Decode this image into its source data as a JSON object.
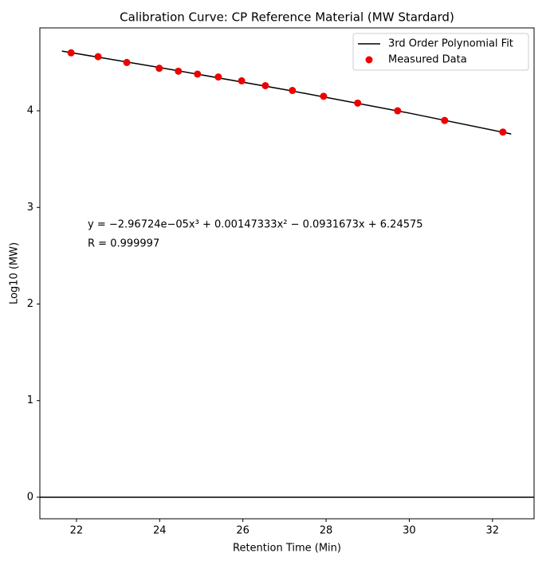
{
  "chart_data": {
    "type": "scatter",
    "title": "Calibration Curve: CP Reference Material (MW Stardard)",
    "xlabel": "Retention Time (Min)",
    "ylabel": "Log10 (MW)",
    "xlim": [
      21.12,
      33.0
    ],
    "ylim": [
      -0.223,
      4.858
    ],
    "xticks": [
      22,
      24,
      26,
      28,
      30,
      32
    ],
    "yticks": [
      0,
      1,
      2,
      3,
      4
    ],
    "hline": 0,
    "legend": "upper right",
    "annotations": [
      "y = −2.96724e−05x³ + 0.00147333x² − 0.0931673x + 6.24575",
      "R = 0.999997"
    ],
    "series": [
      {
        "name": "3rd Order Polynomial Fit",
        "kind": "line",
        "color": "#000000",
        "x": [
          21.65,
          24,
          27,
          30,
          32.45
        ],
        "values": [
          4.618,
          4.448,
          4.22,
          3.976,
          3.76
        ]
      },
      {
        "name": "Measured Data",
        "kind": "scatter",
        "color": "#ee0000",
        "x": [
          21.87,
          22.52,
          23.21,
          23.99,
          24.45,
          24.91,
          25.41,
          25.97,
          26.54,
          27.19,
          27.94,
          28.76,
          29.72,
          30.85,
          32.25
        ],
        "values": [
          4.6,
          4.56,
          4.5,
          4.44,
          4.41,
          4.38,
          4.35,
          4.31,
          4.26,
          4.21,
          4.15,
          4.08,
          4.0,
          3.9,
          3.78
        ]
      }
    ]
  }
}
